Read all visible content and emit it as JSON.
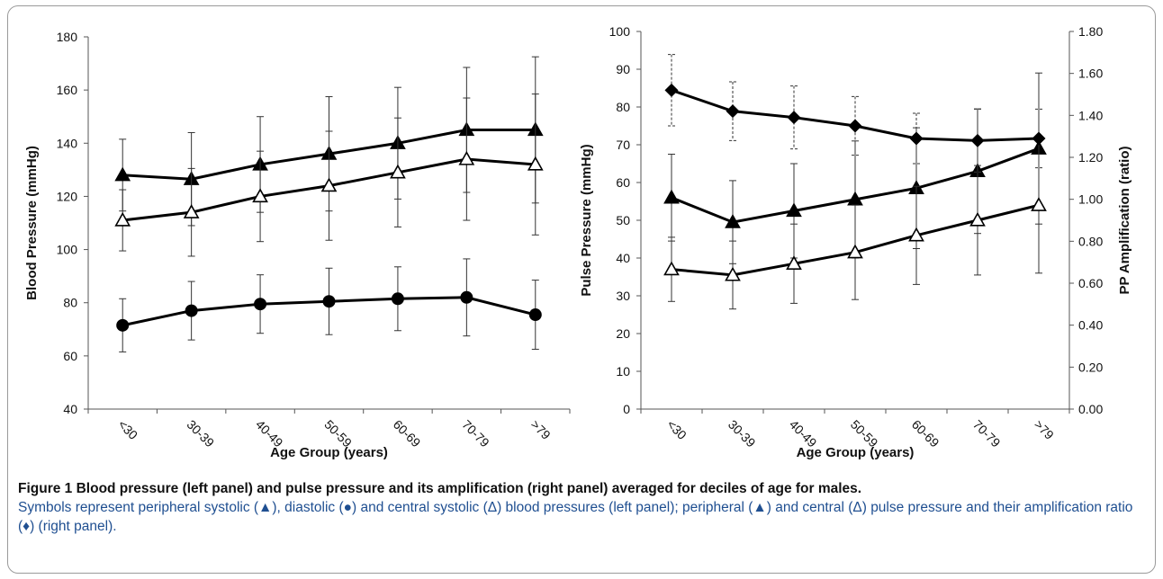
{
  "chart_data": [
    {
      "type": "line",
      "panel": "left",
      "categories": [
        "<30",
        "30-39",
        "40-49",
        "50-59",
        "60-69",
        "70-79",
        ">79"
      ],
      "xlabel": "Age Group (years)",
      "ylabel": "Blood Pressure (mmHg)",
      "ylim": [
        40,
        180
      ],
      "yticks": [
        "40",
        "60",
        "80",
        "100",
        "120",
        "140",
        "160",
        "180"
      ],
      "grid": false,
      "series": [
        {
          "marker": "filled-triangle",
          "values": [
            128,
            126.5,
            132,
            136,
            140,
            145,
            145
          ],
          "errors": [
            13.5,
            17.5,
            18,
            21.5,
            21,
            23.5,
            27.5
          ]
        },
        {
          "marker": "open-triangle",
          "values": [
            111,
            114,
            120,
            124,
            129,
            134,
            132
          ],
          "errors": [
            11.5,
            16.5,
            17,
            20.5,
            20.5,
            23,
            26.5
          ]
        },
        {
          "marker": "filled-circle",
          "values": [
            71.5,
            77,
            79.5,
            80.5,
            81.5,
            82,
            75.5
          ],
          "errors": [
            10,
            11,
            11,
            12.5,
            12,
            14.5,
            13
          ]
        }
      ]
    },
    {
      "type": "line",
      "panel": "right",
      "categories": [
        "<30",
        "30-39",
        "40-49",
        "50-59",
        "60-69",
        "70-79",
        ">79"
      ],
      "xlabel": "Age Group (years)",
      "ylabel": "Pulse Pressure (mmHg)",
      "ylabel_right": "PP Amplification (ratio)",
      "ylim": [
        0,
        100
      ],
      "ylim_right": [
        0,
        1.8
      ],
      "yticks": [
        "0",
        "10",
        "20",
        "30",
        "40",
        "50",
        "60",
        "70",
        "80",
        "90",
        "100"
      ],
      "yticks_right": [
        "0.00",
        "0.20",
        "0.40",
        "0.60",
        "0.80",
        "1.00",
        "1.20",
        "1.40",
        "1.60",
        "1.80"
      ],
      "grid": false,
      "series": [
        {
          "marker": "filled-triangle",
          "axis": "left",
          "values": [
            56,
            49.5,
            52.5,
            55.5,
            58.5,
            63,
            69
          ],
          "errors": [
            11.5,
            11,
            12.5,
            15.5,
            16,
            16.5,
            20
          ]
        },
        {
          "marker": "open-triangle",
          "axis": "left",
          "values": [
            37,
            35.5,
            38.5,
            41.5,
            46,
            50,
            54
          ],
          "errors": [
            8.5,
            9,
            10.5,
            12.5,
            13,
            14.5,
            18
          ]
        },
        {
          "marker": "diamond",
          "axis": "right",
          "dashed_errors": true,
          "values": [
            1.52,
            1.42,
            1.39,
            1.35,
            1.29,
            1.28,
            1.29
          ],
          "errors": [
            0.17,
            0.14,
            0.15,
            0.14,
            0.12,
            0.15,
            0.14
          ]
        }
      ]
    }
  ],
  "caption": {
    "title": "Figure 1 Blood pressure (left panel) and pulse pressure and its amplification (right panel) averaged for deciles of age for males.",
    "body": "Symbols represent peripheral systolic (▲), diastolic (●) and central systolic (Δ) blood pressures (left panel); peripheral (▲) and central (Δ) pulse pressure and their amplification ratio (♦) (right panel)."
  }
}
